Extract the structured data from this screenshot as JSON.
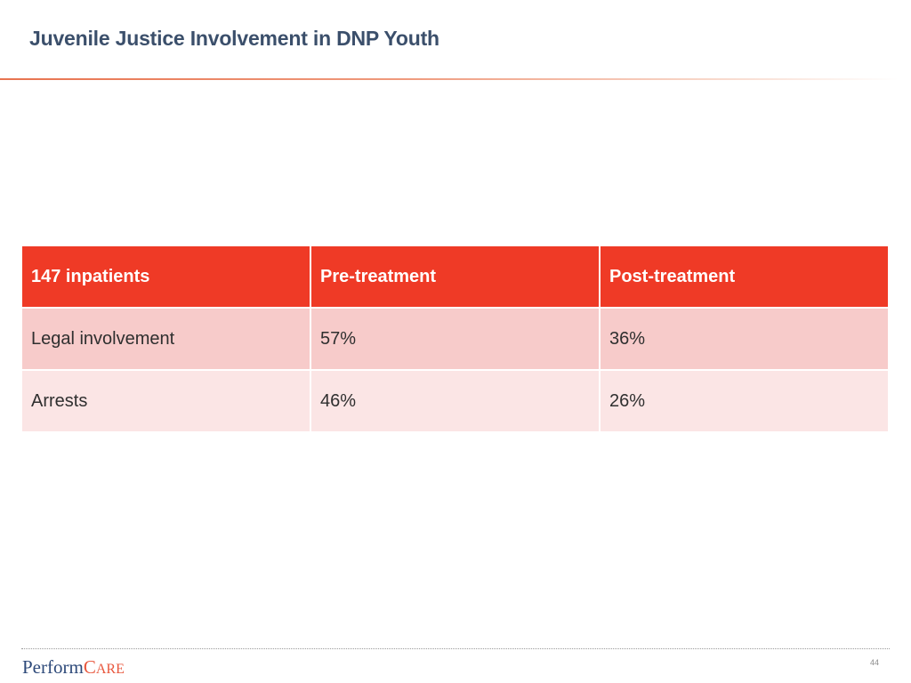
{
  "slide": {
    "title": "Juvenile Justice Involvement in DNP Youth",
    "page_number": "44"
  },
  "table": {
    "headers": [
      "147 inpatients",
      "Pre-treatment",
      "Post-treatment"
    ],
    "rows": [
      [
        "Legal involvement",
        "57%",
        "36%"
      ],
      [
        "Arrests",
        "46%",
        "26%"
      ]
    ]
  },
  "logo": {
    "part1": "Perform",
    "part2_initial": "C",
    "part2_rest": "ARE"
  },
  "colors": {
    "title": "#3b4f6b",
    "header_bg": "#ef3a26",
    "row_odd_bg": "#f7cbca",
    "row_even_bg": "#fbe5e5",
    "accent": "#e8573d"
  }
}
